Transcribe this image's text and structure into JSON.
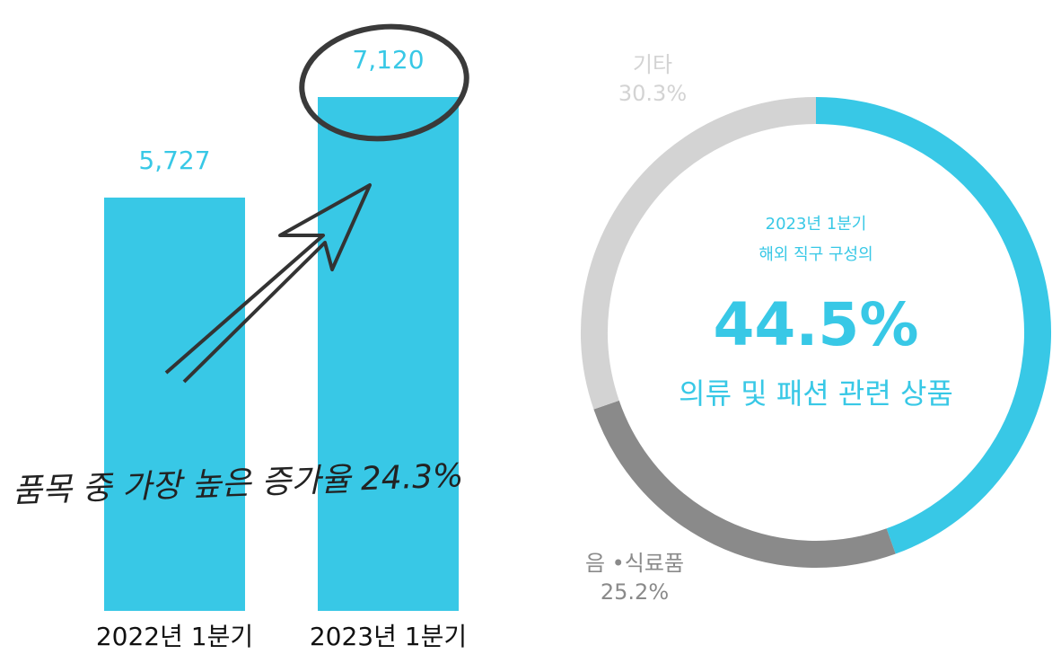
{
  "chart_data": [
    {
      "type": "bar",
      "categories": [
        "2022년 1분기",
        "2023년 1분기"
      ],
      "values": [
        5727,
        7120
      ],
      "value_labels": [
        "5,727",
        "7,120"
      ],
      "color": "#38c8e6",
      "annotation": "품목 중 가장 높은 증가율 24.3%"
    },
    {
      "type": "donut",
      "subtitle": [
        "2023년 1분기",
        "해외 직구 구성의"
      ],
      "categories": [
        "의류 및 패션 관련 상품",
        "음 •식료품",
        "기타"
      ],
      "values": [
        44.5,
        25.2,
        30.3
      ],
      "value_labels": [
        "44.5%",
        "25.2%",
        "30.3%"
      ],
      "colors": [
        "#38c8e6",
        "#8a8a8a",
        "#d3d3d3"
      ]
    }
  ]
}
